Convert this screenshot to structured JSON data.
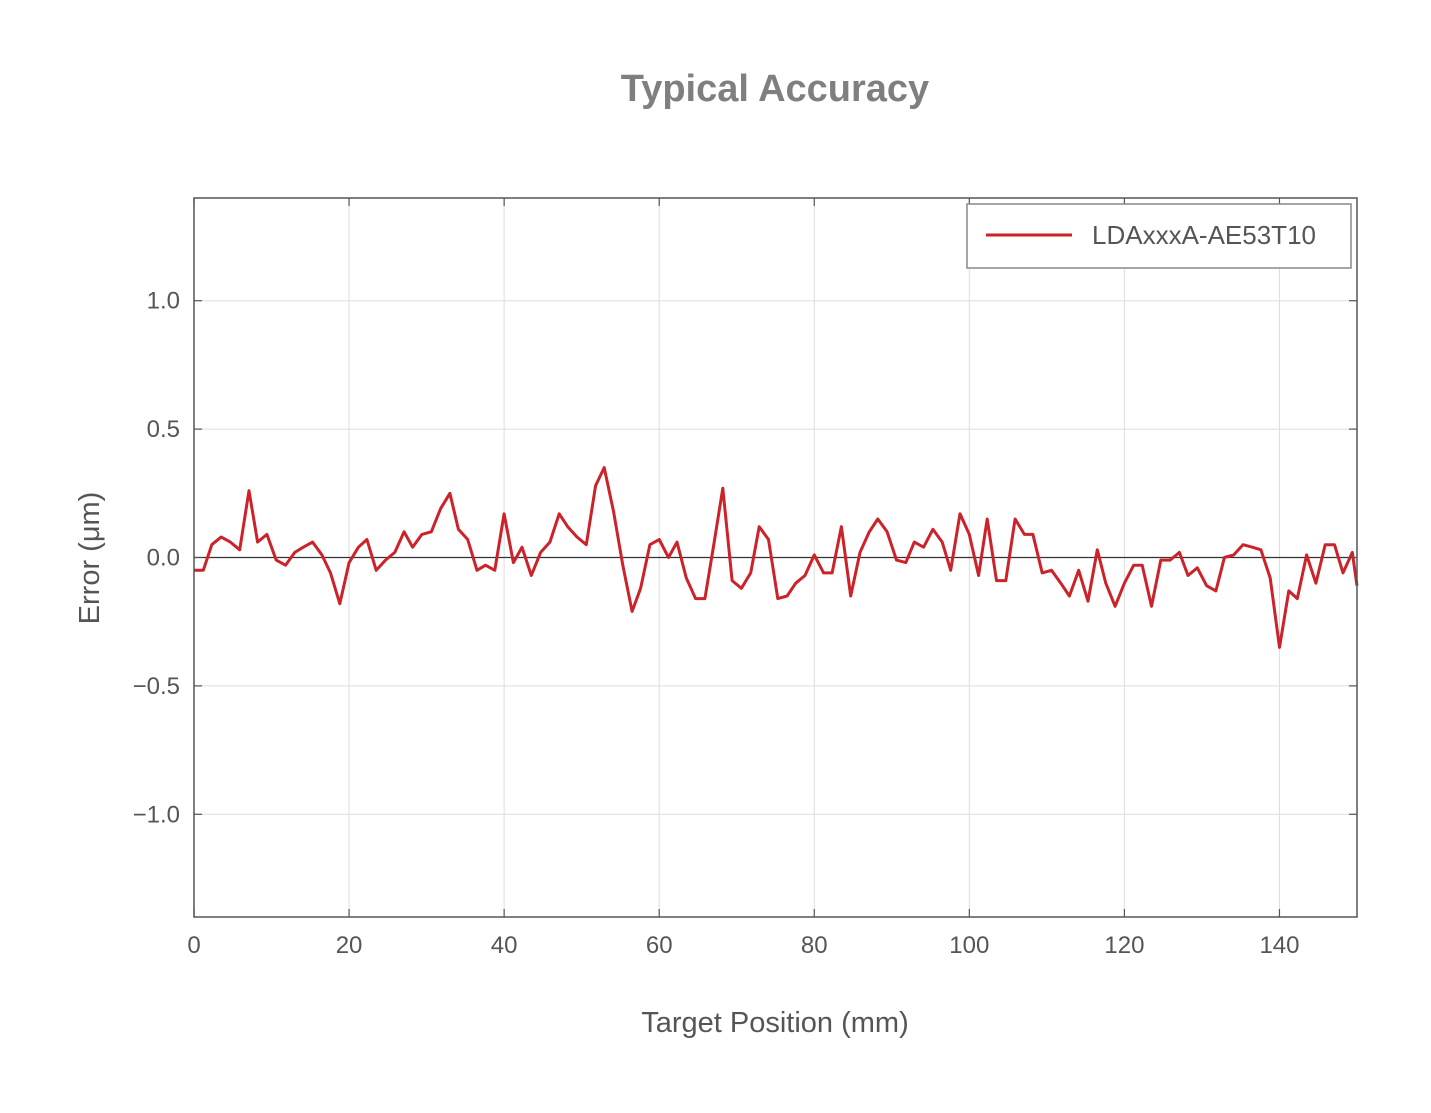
{
  "chart_data": {
    "type": "line",
    "title": "Typical Accuracy",
    "xlabel": "Target Position (mm)",
    "ylabel": "Error (μm)",
    "xlim": [
      0,
      150
    ],
    "ylim": [
      -1.4,
      1.4
    ],
    "xticks": [
      0,
      20,
      40,
      60,
      80,
      100,
      120,
      140
    ],
    "xtick_labels": [
      "0",
      "20",
      "40",
      "60",
      "80",
      "100",
      "120",
      "140"
    ],
    "yticks": [
      1.0,
      0.5,
      0.0,
      -0.5,
      -1.0
    ],
    "ytick_labels": [
      "1.0",
      "0.5",
      "0.0",
      "−0.5",
      "−1.0"
    ],
    "grid": true,
    "legend_position": "top-right",
    "zero_line": true,
    "series": [
      {
        "name": "LDAxxxA-AE53T10",
        "color": "#cc2229",
        "x": [
          0,
          1.2,
          2.3,
          3.5,
          4.7,
          5.9,
          7.1,
          8.2,
          9.4,
          10.6,
          11.8,
          13.0,
          14.1,
          15.3,
          16.5,
          17.6,
          18.8,
          20.0,
          21.2,
          22.3,
          23.5,
          24.7,
          25.9,
          27.1,
          28.2,
          29.4,
          30.6,
          31.8,
          33.0,
          34.1,
          35.3,
          36.5,
          37.6,
          38.8,
          40.0,
          41.2,
          42.3,
          43.5,
          44.7,
          45.9,
          47.1,
          48.2,
          49.4,
          50.6,
          51.8,
          52.9,
          54.1,
          55.3,
          56.5,
          57.6,
          58.8,
          60.0,
          61.2,
          62.3,
          63.5,
          64.7,
          65.9,
          67.1,
          68.2,
          69.4,
          70.6,
          71.8,
          72.9,
          74.1,
          75.3,
          76.5,
          77.6,
          78.8,
          80.0,
          81.2,
          82.3,
          83.5,
          84.7,
          85.9,
          87.1,
          88.2,
          89.4,
          90.6,
          91.8,
          92.9,
          94.1,
          95.3,
          96.5,
          97.6,
          98.8,
          100.0,
          101.2,
          102.3,
          103.5,
          104.7,
          105.9,
          107.1,
          108.2,
          109.4,
          110.6,
          111.8,
          112.9,
          114.1,
          115.3,
          116.5,
          117.6,
          118.8,
          120.0,
          121.2,
          122.3,
          123.5,
          124.7,
          125.9,
          127.1,
          128.2,
          129.4,
          130.6,
          131.8,
          132.9,
          134.1,
          135.3,
          136.5,
          137.6,
          138.8,
          140.0,
          141.2,
          142.3,
          143.5,
          144.7,
          145.9,
          147.1,
          148.2,
          149.4,
          150.0
        ],
        "y": [
          -0.05,
          -0.05,
          0.05,
          0.08,
          0.06,
          0.03,
          0.26,
          0.06,
          0.09,
          -0.01,
          -0.03,
          0.02,
          0.04,
          0.06,
          0.01,
          -0.06,
          -0.18,
          -0.02,
          0.04,
          0.07,
          -0.05,
          -0.01,
          0.02,
          0.1,
          0.04,
          0.09,
          0.1,
          0.19,
          0.25,
          0.11,
          0.07,
          -0.05,
          -0.03,
          -0.05,
          0.17,
          -0.02,
          0.04,
          -0.07,
          0.02,
          0.06,
          0.17,
          0.12,
          0.08,
          0.05,
          0.28,
          0.35,
          0.18,
          -0.03,
          -0.21,
          -0.12,
          0.05,
          0.07,
          0.0,
          0.06,
          -0.08,
          -0.16,
          -0.16,
          0.06,
          0.27,
          -0.09,
          -0.12,
          -0.06,
          0.12,
          0.07,
          -0.16,
          -0.15,
          -0.1,
          -0.07,
          0.01,
          -0.06,
          -0.06,
          0.12,
          -0.15,
          0.02,
          0.1,
          0.15,
          0.1,
          -0.01,
          -0.02,
          0.06,
          0.04,
          0.11,
          0.06,
          -0.05,
          0.17,
          0.09,
          -0.07,
          0.15,
          -0.09,
          -0.09,
          0.15,
          0.09,
          0.09,
          -0.06,
          -0.05,
          -0.1,
          -0.15,
          -0.05,
          -0.17,
          0.03,
          -0.1,
          -0.19,
          -0.1,
          -0.03,
          -0.03,
          -0.19,
          -0.01,
          -0.01,
          0.02,
          -0.07,
          -0.04,
          -0.11,
          -0.13,
          0.0,
          0.01,
          0.05,
          0.04,
          0.03,
          -0.08,
          -0.35,
          -0.13,
          -0.16,
          0.01,
          -0.1,
          0.05,
          0.05,
          -0.06,
          0.02,
          -0.11
        ]
      }
    ]
  }
}
